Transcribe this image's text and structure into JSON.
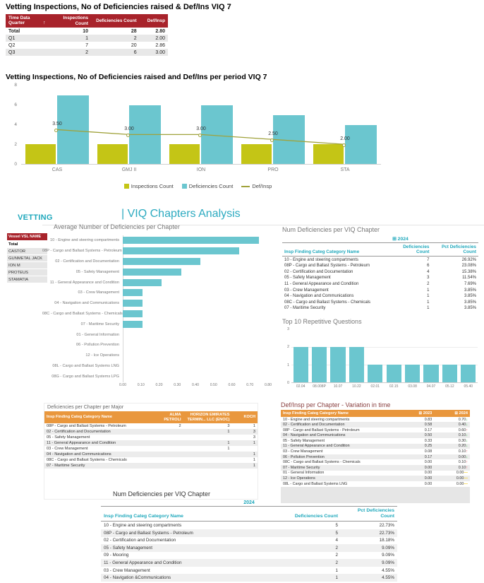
{
  "colors": {
    "dark_red": "#A8232B",
    "teal_bar": "#6BC6CF",
    "yellow_bar": "#C4C516",
    "olive_line": "#A0A23B",
    "teal_text": "#1FA8BC",
    "orange": "#E9973D",
    "trend_up_red": "#D64550",
    "trend_down_green": "#3BB44A",
    "trend_flat_amber": "#F2C80F"
  },
  "quarter_table": {
    "title": "Vetting Inspections, No of Deficiencies raised & Def/Ins VIQ 7",
    "sort_icon": "↑",
    "columns": [
      "Time Data Quarter",
      "Inspections Count",
      "Deficiencies Count",
      "Def/Insp"
    ],
    "rows": [
      [
        "Total",
        "10",
        "28",
        "2.80"
      ],
      [
        "Q1",
        "1",
        "2",
        "2.00"
      ],
      [
        "Q2",
        "7",
        "20",
        "2.86"
      ],
      [
        "Q3",
        "2",
        "6",
        "3.00"
      ]
    ]
  },
  "combo": {
    "title": "Vetting Inspections, No of Deficiencies raised and Def/Ins per period VIQ 7",
    "y_ticks": [
      "8",
      "6",
      "4",
      "2",
      "0"
    ],
    "y_max": 8,
    "categories": [
      "CAS",
      "GMJ II",
      "ION",
      "PRO",
      "STA"
    ],
    "inspections": [
      2,
      2,
      2,
      2,
      2
    ],
    "deficiencies": [
      7,
      6,
      6,
      5,
      4
    ],
    "def_insp": [
      3.5,
      3,
      3,
      2.5,
      2
    ],
    "def_insp_labels": [
      "3.50",
      "3.00",
      "3.00",
      "2.50",
      "2.00"
    ],
    "legend": [
      "Inspections Count",
      "Deficiencies Count",
      "Def/Insp"
    ]
  },
  "section": {
    "brand": "VETTING",
    "title": "| VIQ Chapters Analysis"
  },
  "vessel_slicer": {
    "header": "Vessel VSL NAME",
    "items": [
      "Total",
      "CASTOR",
      "GUNMETAL JACK",
      "ION M",
      "PROTEUS",
      "STAMATIA"
    ]
  },
  "avg_chart": {
    "title": "Average Number of Deficiencies per Chapter",
    "x_ticks": [
      "0.00",
      "0.10",
      "0.20",
      "0.30",
      "0.40",
      "0.50",
      "0.60",
      "0.70",
      "0.80"
    ],
    "x_max": 0.8,
    "items": [
      {
        "label": "10 - Engine and steering compartments",
        "value": 0.7
      },
      {
        "label": "08P - Cargo and Ballast Systems - Petroleum",
        "value": 0.6
      },
      {
        "label": "02 - Certification and Documentation",
        "value": 0.4
      },
      {
        "label": "05 - Safety Management",
        "value": 0.3
      },
      {
        "label": "11 - General Appearance and Condition",
        "value": 0.2
      },
      {
        "label": "03 - Crew Management",
        "value": 0.1
      },
      {
        "label": "04 - Navigation and Communications",
        "value": 0.1
      },
      {
        "label": "08C - Cargo and Ballast Systems - Chemicals",
        "value": 0.1
      },
      {
        "label": "07 - Maritime Security",
        "value": 0.1
      },
      {
        "label": "01 - General Information",
        "value": 0
      },
      {
        "label": "06 - Pollution Prevention",
        "value": 0
      },
      {
        "label": "12 - Ice Operations",
        "value": 0
      },
      {
        "label": "08L - Cargo and Ballast Systems LNG",
        "value": 0
      },
      {
        "label": "08G - Cargo and Ballast Systems LPG",
        "value": 0
      }
    ]
  },
  "num_def": {
    "title": "Num Deficiencies per VIQ Chapter",
    "year": "⊞ 2024",
    "columns": [
      "Insp Finding Categ Category Name",
      "Deficiencies Count",
      "Pct Deficiencies Count"
    ],
    "rows": [
      [
        "10 - Engine and steering compartments",
        "7",
        "26.92%"
      ],
      [
        "08P - Cargo and Ballast Systems - Petroleum",
        "6",
        "23.08%"
      ],
      [
        "02 - Certification and Documentation",
        "4",
        "15.38%"
      ],
      [
        "05 - Safety Management",
        "3",
        "11.54%"
      ],
      [
        "11 - General Appearance and Condition",
        "2",
        "7.69%"
      ],
      [
        "03 - Crew Management",
        "1",
        "3.85%"
      ],
      [
        "04 - Navigation and Communications",
        "1",
        "3.85%"
      ],
      [
        "08C - Cargo and Ballast Systems - Chemicals",
        "1",
        "3.85%"
      ],
      [
        "07 - Maritime Security",
        "1",
        "3.85%"
      ]
    ]
  },
  "top10": {
    "title": "Top 10 Repetitive Questions",
    "y_ticks": [
      "3",
      "2",
      "1",
      "0"
    ],
    "y_max": 3,
    "categories": [
      "02.04",
      "08.008P",
      "10.07",
      "10.22",
      "02.01",
      "02.15",
      "03.08",
      "04.07",
      "05.12",
      "05.40"
    ],
    "values": [
      2,
      2,
      2,
      2,
      1,
      1,
      1,
      1,
      1,
      1
    ]
  },
  "per_major": {
    "title": "Deficiencies per Chapter per Major",
    "columns": [
      "Insp Finding Categ Category Name",
      "ALMA PETROLI",
      "HORIZON EMIRATES TERMIN... LLC (ENOC)",
      "KOCH"
    ],
    "rows": [
      [
        "08P - Cargo and Ballast Systems - Petroleum",
        "2",
        "3",
        "1"
      ],
      [
        "02 - Certification and Documentation",
        "",
        "1",
        "3"
      ],
      [
        "05 - Safety Management",
        "",
        "",
        "3"
      ],
      [
        "11 - General Appearance and Condition",
        "",
        "1",
        "1"
      ],
      [
        "03 - Crew Management",
        "",
        "1",
        ""
      ],
      [
        "04 - Navigation and Communications",
        "",
        "",
        "1"
      ],
      [
        "08C - Cargo and Ballast Systems - Chemicals",
        "",
        "",
        "1"
      ],
      [
        "07 - Maritime Security",
        "",
        "",
        "1"
      ]
    ]
  },
  "variation": {
    "title": "Def/Insp per Chapter - Variation in time",
    "columns": [
      "Insp Finding Categ Category Name",
      "⊞ 2023",
      "⊞ 2024"
    ],
    "indicators": {
      "down": "↓",
      "up": "↑",
      "flat": "—"
    },
    "rows": [
      {
        "name": "10 - Engine and steering compartments",
        "y2023": "0.83",
        "y2024": "0.70",
        "trend": "down"
      },
      {
        "name": "02 - Certification and Documentation",
        "y2023": "0.58",
        "y2024": "0.40",
        "trend": "down"
      },
      {
        "name": "08P - Cargo and Ballast Systems - Petroleum",
        "y2023": "0.17",
        "y2024": "0.60",
        "trend": "up"
      },
      {
        "name": "04 - Navigation and Communications",
        "y2023": "0.50",
        "y2024": "0.10",
        "trend": "down"
      },
      {
        "name": "05 - Safety Management",
        "y2023": "0.33",
        "y2024": "0.30",
        "trend": "down"
      },
      {
        "name": "11 - General Appearance and Condition",
        "y2023": "0.25",
        "y2024": "0.20",
        "trend": "down"
      },
      {
        "name": "03 - Crew Management",
        "y2023": "0.08",
        "y2024": "0.10",
        "trend": "up"
      },
      {
        "name": "06 - Pollution Prevention",
        "y2023": "0.17",
        "y2024": "0.00",
        "trend": "down"
      },
      {
        "name": "08C - Cargo and Ballast Systems - Chemicals",
        "y2023": "0.00",
        "y2024": "0.10",
        "trend": "up"
      },
      {
        "name": "07 - Maritime Security",
        "y2023": "0.00",
        "y2024": "0.10",
        "trend": "up"
      },
      {
        "name": "01 - General Information",
        "y2023": "0.00",
        "y2024": "0.00",
        "trend": "flat"
      },
      {
        "name": "12 - Ice Operations",
        "y2023": "0.00",
        "y2024": "0.00",
        "trend": "flat"
      },
      {
        "name": "08L - Cargo and Ballast Systems LNG",
        "y2023": "0.00",
        "y2024": "0.00",
        "trend": "flat"
      }
    ]
  },
  "bottom_table": {
    "title": "Num Deficiencies per VIQ Chapter",
    "year": "2024",
    "columns": [
      "Insp Finding Categ Category Name",
      "Deficiencies Count",
      "Pct Deficiencies Count"
    ],
    "rows": [
      [
        "10 - Engine and steering compartments",
        "5",
        "22.73%"
      ],
      [
        "08P - Cargo and Ballast Systems - Petroleum",
        "5",
        "22.73%"
      ],
      [
        "02 - Certification and Documentation",
        "4",
        "18.18%"
      ],
      [
        "05 - Safety Management",
        "2",
        "9.09%"
      ],
      [
        "09 - Mooring",
        "2",
        "9.09%"
      ],
      [
        "11 - General Appearance and Condition",
        "2",
        "9.09%"
      ],
      [
        "03 - Crew Management",
        "1",
        "4.55%"
      ],
      [
        "04 - Navigation &Communications",
        "1",
        "4.55%"
      ]
    ]
  },
  "chart_data": [
    {
      "type": "bar",
      "subtype": "combo-bar-line",
      "title": "Vetting Inspections, No of Deficiencies raised and Def/Ins per period VIQ 7",
      "categories": [
        "CAS",
        "GMJ II",
        "ION",
        "PRO",
        "STA"
      ],
      "series": [
        {
          "name": "Inspections Count",
          "type": "bar",
          "values": [
            2,
            2,
            2,
            2,
            2
          ]
        },
        {
          "name": "Deficiencies Count",
          "type": "bar",
          "values": [
            7,
            6,
            6,
            5,
            4
          ]
        },
        {
          "name": "Def/Insp",
          "type": "line",
          "values": [
            3.5,
            3.0,
            3.0,
            2.5,
            2.0
          ]
        }
      ],
      "ylim": [
        0,
        8
      ],
      "legend_position": "bottom",
      "grid": false
    },
    {
      "type": "bar",
      "orientation": "horizontal",
      "title": "Average Number of Deficiencies per Chapter",
      "categories": [
        "10 - Engine and steering compartments",
        "08P - Cargo and Ballast Systems - Petroleum",
        "02 - Certification and Documentation",
        "05 - Safety Management",
        "11 - General Appearance and Condition",
        "03 - Crew Management",
        "04 - Navigation and Communications",
        "08C - Cargo and Ballast Systems - Chemicals",
        "07 - Maritime Security",
        "01 - General Information",
        "06 - Pollution Prevention",
        "12 - Ice Operations",
        "08L - Cargo and Ballast Systems LNG",
        "08G - Cargo and Ballast Systems LPG"
      ],
      "values": [
        0.7,
        0.6,
        0.4,
        0.3,
        0.2,
        0.1,
        0.1,
        0.1,
        0.1,
        0,
        0,
        0,
        0,
        0
      ],
      "xlim": [
        0,
        0.8
      ],
      "grid": false
    },
    {
      "type": "bar",
      "title": "Top 10 Repetitive Questions",
      "categories": [
        "02.04",
        "08.008P",
        "10.07",
        "10.22",
        "02.01",
        "02.15",
        "03.08",
        "04.07",
        "05.12",
        "05.40"
      ],
      "values": [
        2,
        2,
        2,
        2,
        1,
        1,
        1,
        1,
        1,
        1
      ],
      "ylim": [
        0,
        3
      ],
      "grid": true
    }
  ]
}
